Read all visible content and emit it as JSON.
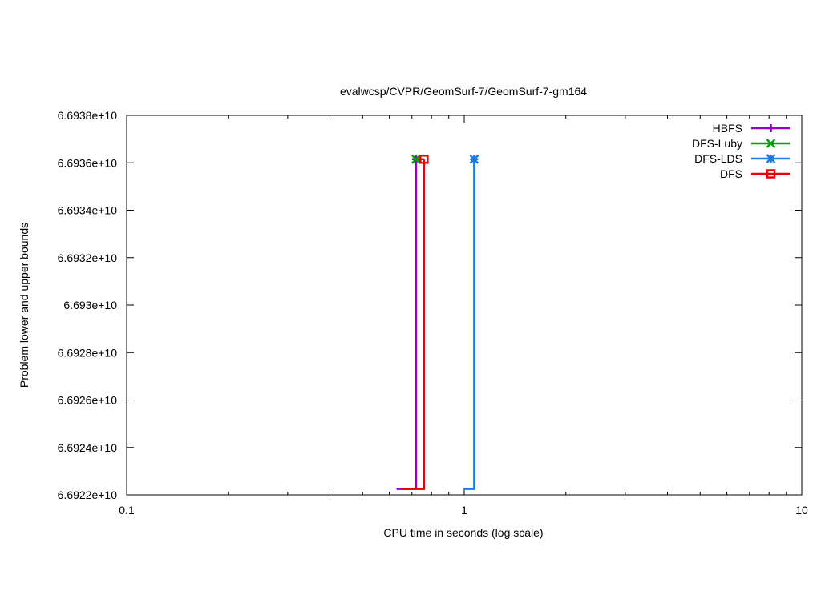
{
  "chart_data": {
    "type": "line",
    "title": "evalwcsp/CVPR/GeomSurf-7/GeomSurf-7-gm164",
    "xlabel": "CPU time in seconds (log scale)",
    "ylabel": "Problem lower and upper bounds",
    "x_scale": "log",
    "xlim": [
      0.1,
      10
    ],
    "ylim": [
      66922000000,
      66938000000
    ],
    "x_ticks": [
      0.1,
      1,
      10
    ],
    "x_tick_labels": [
      "0.1",
      "1",
      "10"
    ],
    "y_ticks": [
      66922000000,
      66924000000,
      66926000000,
      66928000000,
      66930000000,
      66932000000,
      66934000000,
      66936000000,
      66938000000
    ],
    "y_tick_labels": [
      "6.6922e+10",
      "6.6924e+10",
      "6.6926e+10",
      "6.6928e+10",
      "6.693e+10",
      "6.6932e+10",
      "6.6934e+10",
      "6.6936e+10",
      "6.6938e+10"
    ],
    "grid": false,
    "legend_position": "top-right",
    "series": [
      {
        "name": "HBFS",
        "color": "#9400d3",
        "marker": "plus",
        "lower": [
          [
            0.63,
            66922250000
          ],
          [
            0.72,
            66922250000
          ],
          [
            0.72,
            66936150000
          ]
        ],
        "upper": [
          [
            0.72,
            66936150000
          ]
        ],
        "marker_points": [
          [
            0.72,
            66936150000
          ]
        ]
      },
      {
        "name": "DFS-Luby",
        "color": "#009e00",
        "marker": "x",
        "lower": [],
        "upper": [
          [
            0.72,
            66936150000
          ]
        ],
        "marker_points": [
          [
            0.72,
            66936150000
          ]
        ]
      },
      {
        "name": "DFS-LDS",
        "color": "#1a7ae6",
        "marker": "star",
        "lower": [
          [
            1.0,
            66922250000
          ],
          [
            1.07,
            66922250000
          ],
          [
            1.07,
            66936150000
          ]
        ],
        "upper": [
          [
            1.07,
            66936150000
          ]
        ],
        "marker_points": [
          [
            1.07,
            66936150000
          ]
        ]
      },
      {
        "name": "DFS",
        "color": "#e60000",
        "marker": "square",
        "lower": [
          [
            0.65,
            66922250000
          ],
          [
            0.76,
            66922250000
          ],
          [
            0.76,
            66936150000
          ]
        ],
        "upper": [
          [
            0.73,
            66936150000
          ],
          [
            0.76,
            66936150000
          ]
        ],
        "marker_points": [
          [
            0.76,
            66936150000
          ]
        ]
      }
    ]
  }
}
